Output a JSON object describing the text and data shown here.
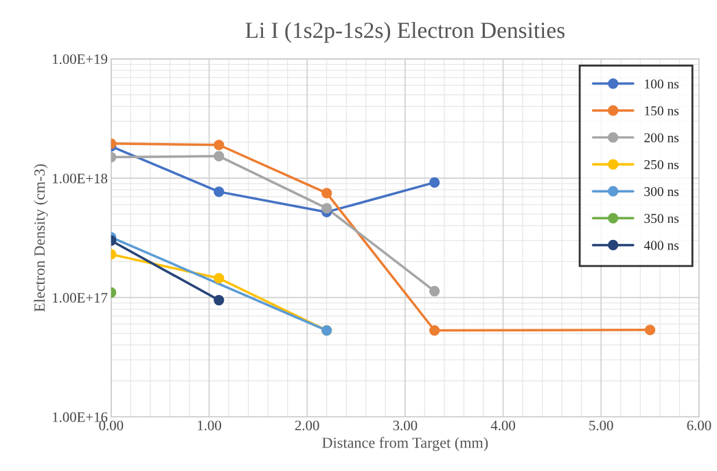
{
  "chart_data": {
    "type": "line",
    "title": "Li I (1s2p-1s2s) Electron Densities",
    "xlabel": "Distance from Target (mm)",
    "ylabel": "Electron Density (cm-3)",
    "log": "y",
    "xlim": [
      0,
      6
    ],
    "xticks": [
      {
        "value": 0,
        "label": "0.00"
      },
      {
        "value": 1,
        "label": "1.00"
      },
      {
        "value": 2,
        "label": "2.00"
      },
      {
        "value": 3,
        "label": "3.00"
      },
      {
        "value": 4,
        "label": "4.00"
      },
      {
        "value": 5,
        "label": "5.00"
      },
      {
        "value": 6,
        "label": "6.00"
      }
    ],
    "ylim": [
      1e+16,
      1e+19
    ],
    "yticks": [
      {
        "value": 1e+16,
        "label": "1.00E+16"
      },
      {
        "value": 1e+17,
        "label": "1.00E+17"
      },
      {
        "value": 1e+18,
        "label": "1.00E+18"
      },
      {
        "value": 1e+19,
        "label": "1.00E+19"
      }
    ],
    "grid": true,
    "legend": "top right",
    "marker": "circle",
    "line_style": "solid",
    "series": [
      {
        "name": "100 ns",
        "color": "#4472c4",
        "x": [
          0,
          1.1,
          2.2,
          3.3
        ],
        "values": [
          1.85e+18,
          7.7e+17,
          5.2e+17,
          9.2e+17
        ]
      },
      {
        "name": "150 ns",
        "color": "#ed7d31",
        "x": [
          0,
          1.1,
          2.2,
          3.3,
          5.5
        ],
        "values": [
          1.95e+18,
          1.9e+18,
          7.5e+17,
          5.3e+16,
          5.35e+16
        ]
      },
      {
        "name": "200 ns",
        "color": "#a5a5a5",
        "x": [
          0,
          1.1,
          2.2,
          3.3
        ],
        "values": [
          1.5e+18,
          1.53e+18,
          5.6e+17,
          1.13e+17
        ]
      },
      {
        "name": "250 ns",
        "color": "#ffc000",
        "x": [
          0,
          1.1,
          2.2
        ],
        "values": [
          2.3e+17,
          1.45e+17,
          5.3e+16
        ]
      },
      {
        "name": "300 ns",
        "color": "#5b9bd5",
        "x": [
          0,
          2.2
        ],
        "values": [
          3.2e+17,
          5.3e+16
        ]
      },
      {
        "name": "350 ns",
        "color": "#70ad47",
        "x": [
          0
        ],
        "values": [
          1.1e+17
        ]
      },
      {
        "name": "400 ns",
        "color": "#264478",
        "x": [
          0,
          1.1
        ],
        "values": [
          3e+17,
          9.5e+16
        ]
      }
    ]
  }
}
